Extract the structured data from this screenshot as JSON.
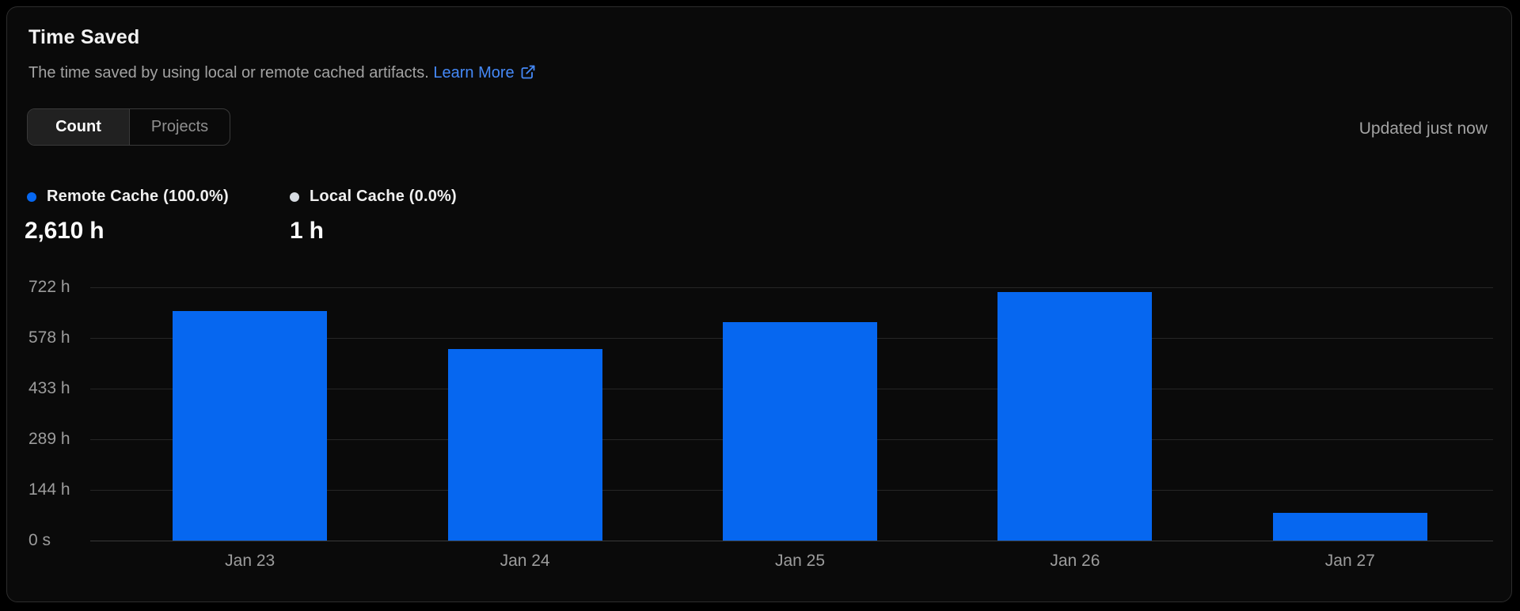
{
  "card": {
    "title": "Time Saved",
    "subtitle": "The time saved by using local or remote cached artifacts.",
    "learn_more_label": "Learn More",
    "updated": "Updated just now",
    "tabs": [
      {
        "label": "Count",
        "active": true
      },
      {
        "label": "Projects",
        "active": false
      }
    ]
  },
  "legend": [
    {
      "label": "Remote Cache (100.0%)",
      "value": "2,610 h",
      "color": "#0667f0"
    },
    {
      "label": "Local Cache (0.0%)",
      "value": "1 h",
      "color": "#d7dce2"
    }
  ],
  "chart_data": {
    "type": "bar",
    "title": "Time Saved",
    "categories": [
      "Jan 23",
      "Jan 24",
      "Jan 25",
      "Jan 26",
      "Jan 27"
    ],
    "series": [
      {
        "name": "Remote Cache",
        "values": [
          655,
          545,
          623,
          709,
          78
        ],
        "color": "#0667f0",
        "total_label": "2,610 h"
      },
      {
        "name": "Local Cache",
        "values": [
          0,
          0,
          0,
          0,
          0
        ],
        "color": "#d7dce2",
        "total_label": "1 h"
      }
    ],
    "unit": "h",
    "ylim": [
      0,
      722
    ],
    "y_ticks": [
      {
        "value": 722,
        "label": "722 h"
      },
      {
        "value": 578,
        "label": "578 h"
      },
      {
        "value": 433,
        "label": "433 h"
      },
      {
        "value": 289,
        "label": "289 h"
      },
      {
        "value": 144,
        "label": "144 h"
      },
      {
        "value": 0,
        "label": "0 s"
      }
    ],
    "grid": true,
    "legend_position": "top-left"
  },
  "colors": {
    "bar": "#0667f0",
    "link": "#4589f7",
    "grid": "#262626",
    "axis_text": "#9c9c9c",
    "card_bg": "#0a0a0a",
    "card_border": "#2d2d2d"
  }
}
